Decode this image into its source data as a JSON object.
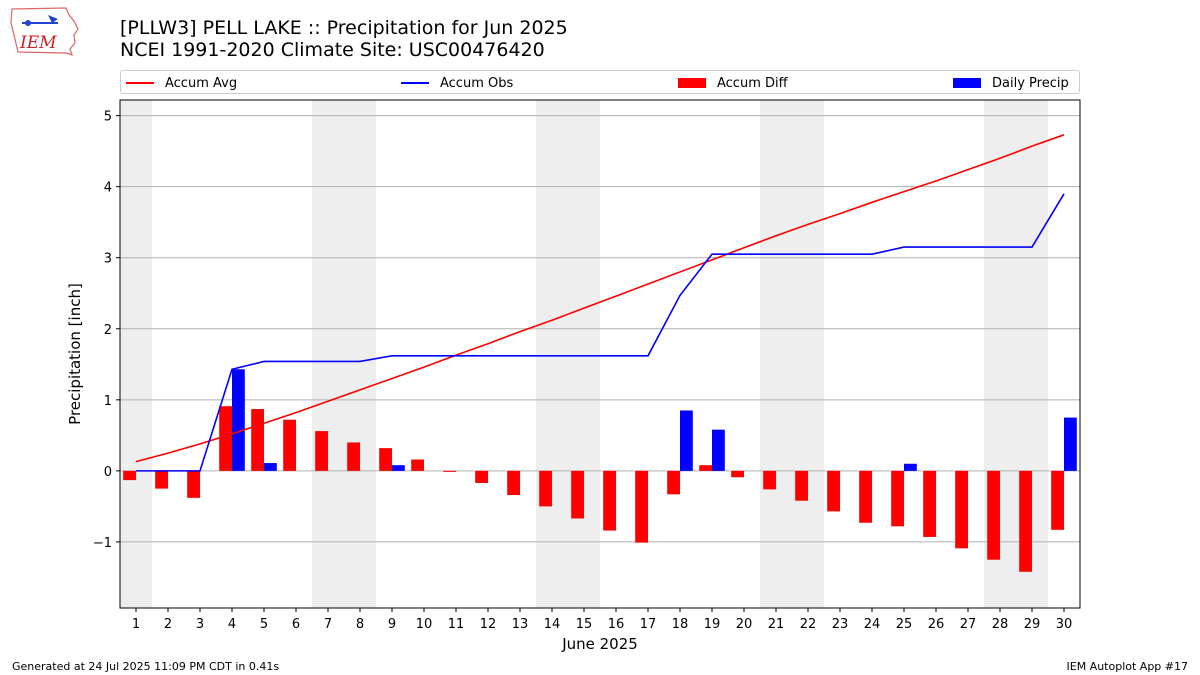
{
  "titles": {
    "line1": "[PLLW3] PELL LAKE :: Precipitation for Jun 2025",
    "line2": "NCEI 1991-2020 Climate Site: USC00476420"
  },
  "logo": {
    "text": "IEM",
    "icon": "iowa-state-outline-icon"
  },
  "footer": {
    "left": "Generated at 24 Jul 2025 11:09 PM CDT in 0.41s",
    "right": "IEM Autoplot App #17"
  },
  "colors": {
    "avg": "#ff0000",
    "obs": "#0000ff",
    "diff": "#ff0000",
    "daily": "#0000ff",
    "weekend_shade": "#eeeeee",
    "grid": "#b0b0b0"
  },
  "chart_data": {
    "type": "bar",
    "xlabel": "June 2025",
    "ylabel": "Precipitation [inch]",
    "xlim": [
      0.5,
      30.5
    ],
    "ylim": [
      -1.93,
      5.22
    ],
    "yticks": [
      -1,
      0,
      1,
      2,
      3,
      4,
      5
    ],
    "ytick_labels": [
      "−1",
      "0",
      "1",
      "2",
      "3",
      "4",
      "5"
    ],
    "grid": true,
    "legend_position": "top",
    "days": [
      1,
      2,
      3,
      4,
      5,
      6,
      7,
      8,
      9,
      10,
      11,
      12,
      13,
      14,
      15,
      16,
      17,
      18,
      19,
      20,
      21,
      22,
      23,
      24,
      25,
      26,
      27,
      28,
      29,
      30
    ],
    "shaded_days": [
      [
        0.5,
        1.5
      ],
      [
        6.5,
        8.5
      ],
      [
        13.5,
        15.5
      ],
      [
        20.5,
        22.5
      ],
      [
        27.5,
        29.5
      ]
    ],
    "series": [
      {
        "name": "Accum Avg",
        "kind": "line",
        "values": [
          0.13,
          0.25,
          0.38,
          0.52,
          0.67,
          0.82,
          0.98,
          1.14,
          1.3,
          1.46,
          1.63,
          1.79,
          1.96,
          2.12,
          2.29,
          2.46,
          2.63,
          2.8,
          2.97,
          3.14,
          3.31,
          3.47,
          3.62,
          3.78,
          3.93,
          4.08,
          4.24,
          4.4,
          4.57,
          4.73
        ]
      },
      {
        "name": "Accum Obs",
        "kind": "line",
        "values": [
          0,
          0,
          0,
          1.43,
          1.54,
          1.54,
          1.54,
          1.54,
          1.62,
          1.62,
          1.62,
          1.62,
          1.62,
          1.62,
          1.62,
          1.62,
          1.62,
          2.47,
          3.05,
          3.05,
          3.05,
          3.05,
          3.05,
          3.05,
          3.15,
          3.15,
          3.15,
          3.15,
          3.15,
          3.9
        ]
      },
      {
        "name": "Accum Diff",
        "kind": "bar",
        "values": [
          -0.13,
          -0.25,
          -0.38,
          0.91,
          0.87,
          0.72,
          0.56,
          0.4,
          0.32,
          0.16,
          -0.01,
          -0.17,
          -0.34,
          -0.5,
          -0.67,
          -0.84,
          -1.01,
          -0.33,
          0.08,
          -0.09,
          -0.26,
          -0.42,
          -0.57,
          -0.73,
          -0.78,
          -0.93,
          -1.09,
          -1.25,
          -1.42,
          -0.83
        ]
      },
      {
        "name": "Daily Precip",
        "kind": "bar",
        "values": [
          0,
          0,
          0,
          1.43,
          0.11,
          0,
          0,
          0,
          0.08,
          0,
          0,
          0,
          0,
          0,
          0,
          0,
          0,
          0.85,
          0.58,
          0,
          0,
          0,
          0,
          0,
          0.1,
          0,
          0,
          0,
          0,
          0.75
        ]
      }
    ]
  }
}
